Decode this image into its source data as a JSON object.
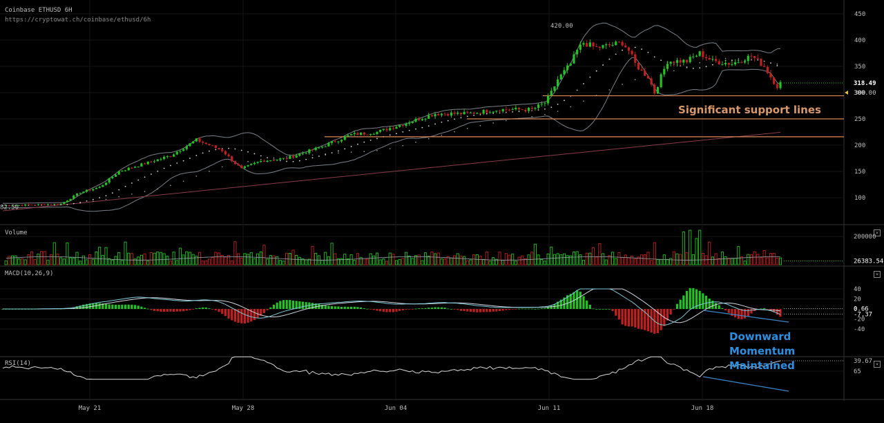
{
  "header": {
    "title": "Coinbase ETHUSD 6H",
    "url": "https://cryptowat.ch/coinbase/ethusd/6h"
  },
  "colors": {
    "background": "#000000",
    "grid": "#161616",
    "bull": "#22c322",
    "bear": "#c21f1f",
    "band": "#9aa0aa",
    "support": "#d98a55",
    "ma_slow": "#8a3c4a",
    "annotation_support": "#d9986a",
    "annotation_momentum": "#2d8fe0",
    "trend_line": "#3b86c9"
  },
  "annotations": {
    "support": "Significant support lines",
    "momentum": [
      "Downward",
      "Momentum",
      "Maintained"
    ],
    "high_label": "420.00",
    "low_label": "82.50"
  },
  "panes": {
    "volume": "Volume",
    "macd": "MACD(10,26,9)",
    "rsi": "RSI(14)",
    "close_glyph": "×"
  },
  "chart_data": [
    {
      "type": "candlestick",
      "title": "Coinbase ETHUSD 6H",
      "x_ticks": [
        "May 21",
        "May 28",
        "Jun 04",
        "Jun 11",
        "Jun 18"
      ],
      "y_ticks": [
        100,
        150,
        200,
        250,
        300,
        350,
        400,
        450
      ],
      "ylim": [
        60,
        460
      ],
      "last_price": "318.49",
      "marker_price": "300.00",
      "high": 420.0,
      "low": 82.5,
      "support_levels": [
        294,
        250,
        216
      ],
      "close_path": [
        [
          0,
          85
        ],
        [
          18,
          88
        ],
        [
          24,
          110
        ],
        [
          30,
          120
        ],
        [
          36,
          150
        ],
        [
          44,
          165
        ],
        [
          52,
          180
        ],
        [
          60,
          210
        ],
        [
          68,
          190
        ],
        [
          72,
          165
        ],
        [
          74,
          155
        ],
        [
          80,
          170
        ],
        [
          88,
          175
        ],
        [
          98,
          195
        ],
        [
          108,
          220
        ],
        [
          116,
          225
        ],
        [
          124,
          240
        ],
        [
          134,
          260
        ],
        [
          144,
          260
        ],
        [
          154,
          268
        ],
        [
          164,
          268
        ],
        [
          168,
          280
        ],
        [
          170,
          300
        ],
        [
          172,
          325
        ],
        [
          176,
          355
        ],
        [
          178,
          380
        ],
        [
          180,
          395
        ],
        [
          182,
          390
        ],
        [
          184,
          385
        ],
        [
          188,
          390
        ],
        [
          192,
          395
        ],
        [
          194,
          380
        ],
        [
          196,
          355
        ],
        [
          198,
          340
        ],
        [
          200,
          330
        ],
        [
          202,
          300
        ],
        [
          204,
          330
        ],
        [
          206,
          360
        ],
        [
          212,
          360
        ],
        [
          216,
          375
        ],
        [
          220,
          360
        ],
        [
          226,
          355
        ],
        [
          232,
          370
        ],
        [
          236,
          350
        ],
        [
          238,
          330
        ],
        [
          240,
          312
        ],
        [
          241,
          318
        ]
      ]
    },
    {
      "type": "bar",
      "name": "Volume",
      "y_ticks": [
        200000
      ],
      "last_value": "26383.546"
    },
    {
      "type": "line",
      "name": "MACD(10,26,9)",
      "y_ticks": [
        40,
        20,
        0,
        -20,
        -40
      ],
      "ylim": [
        -45,
        45
      ],
      "last_values": [
        "0.66",
        "-7.37"
      ]
    },
    {
      "type": "line",
      "name": "RSI(14)",
      "y_ticks": [
        65,
        39.67
      ],
      "ylim": [
        20,
        90
      ],
      "last_value": "39.67"
    }
  ]
}
